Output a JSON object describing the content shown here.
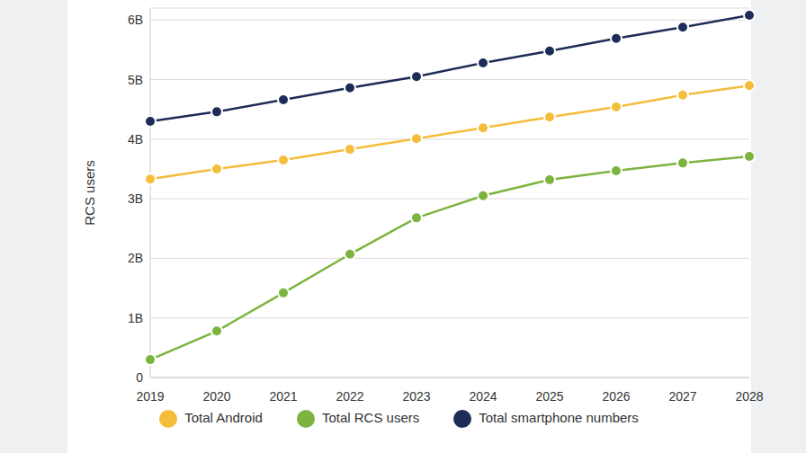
{
  "chart_data": {
    "type": "line",
    "y_label": "RCS users",
    "categories": [
      "2019",
      "2020",
      "2021",
      "2022",
      "2023",
      "2024",
      "2025",
      "2026",
      "2027",
      "2028"
    ],
    "series": [
      {
        "name": "Total smartphone numbers",
        "color": "#1d2d57",
        "values": [
          4.3,
          4.46,
          4.66,
          4.86,
          5.05,
          5.28,
          5.48,
          5.69,
          5.88,
          6.08
        ]
      },
      {
        "name": "Total Android",
        "color": "#f4bd3a",
        "values": [
          3.33,
          3.5,
          3.65,
          3.83,
          4.01,
          4.19,
          4.37,
          4.54,
          4.74,
          4.9
        ]
      },
      {
        "name": "Total RCS users",
        "color": "#7cb43f",
        "values": [
          0.3,
          0.78,
          1.42,
          2.07,
          2.68,
          3.05,
          3.32,
          3.47,
          3.6,
          3.71
        ]
      }
    ],
    "ylim": [
      0,
      6.2
    ],
    "yticks": [
      0,
      {
        "value": 1,
        "label": "1B"
      },
      {
        "value": 2,
        "label": "2B"
      },
      {
        "value": 3,
        "label": "3B"
      },
      {
        "value": 4,
        "label": "4B"
      },
      {
        "value": 5,
        "label": "5B"
      },
      {
        "value": 6,
        "label": "6B"
      }
    ],
    "grid": true,
    "legend": "bottom",
    "marker": "circle"
  }
}
